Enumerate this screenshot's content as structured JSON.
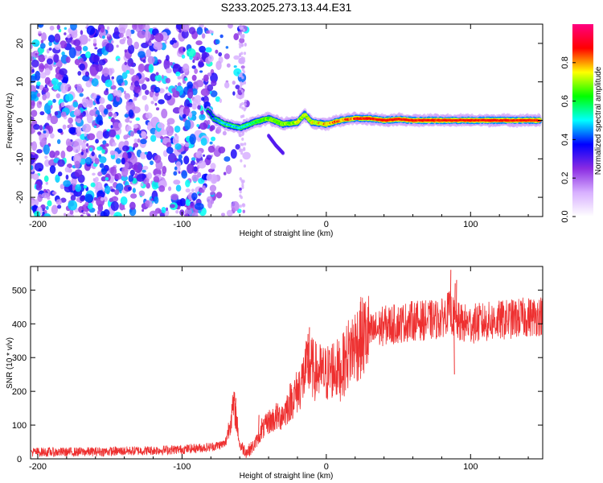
{
  "figure": {
    "title": "S233.2025.273.13.44.E31"
  },
  "chart_data": [
    {
      "type": "heatmap",
      "name": "spectrogram",
      "xlabel": "Height of straight line (km)",
      "ylabel": "Frequency (Hz)",
      "xlim": [
        -205,
        150
      ],
      "ylim": [
        -25,
        25
      ],
      "xticks": [
        -200,
        -100,
        0,
        100
      ],
      "yticks": [
        -20,
        -10,
        0,
        10,
        20
      ],
      "colorbar": {
        "label": "Normalized spectral amplitude",
        "range": [
          0,
          1
        ],
        "ticks": [
          0.0,
          0.2,
          0.4,
          0.6,
          0.8
        ],
        "colors": [
          "#ffffff",
          "#d8b0ff",
          "#8a2be2",
          "#0000ff",
          "#00ffff",
          "#00ff00",
          "#ffff00",
          "#ff0000",
          "#ff0080"
        ]
      },
      "ridge": {
        "x": [
          -82,
          -78,
          -70,
          -60,
          -50,
          -40,
          -30,
          -20,
          -15,
          -10,
          0,
          10,
          20,
          30,
          40,
          50,
          60,
          80,
          100,
          120,
          148
        ],
        "y": [
          2.5,
          0.5,
          -1,
          -2,
          -0.5,
          0.5,
          -1,
          -0.5,
          1.5,
          -0.5,
          -1,
          0,
          0.5,
          0.5,
          0,
          0.3,
          0,
          0,
          0,
          0,
          0
        ],
        "amplitude": [
          0.35,
          0.45,
          0.5,
          0.5,
          0.6,
          0.7,
          0.7,
          0.75,
          0.75,
          0.8,
          0.82,
          0.85,
          0.88,
          0.9,
          0.92,
          0.95,
          0.95,
          0.95,
          0.95,
          0.95,
          0.95
        ]
      },
      "branch": {
        "x": [
          -40,
          -35,
          -30
        ],
        "y": [
          -4,
          -6.5,
          -8.5
        ]
      },
      "noise": {
        "x_range": [
          -205,
          -55
        ],
        "y_range": [
          -25,
          25
        ],
        "amplitude_range": [
          0.0,
          0.35
        ]
      }
    },
    {
      "type": "line",
      "name": "snr",
      "xlabel": "Height of straight line (km)",
      "ylabel": "SNR (10 * v/v)",
      "xlim": [
        -205,
        150
      ],
      "ylim": [
        0,
        570
      ],
      "xticks": [
        -200,
        -100,
        0,
        100
      ],
      "yticks": [
        0,
        100,
        200,
        300,
        400,
        500
      ],
      "color": "#ee3030",
      "series": [
        {
          "name": "SNR",
          "x": [
            -205,
            -180,
            -150,
            -120,
            -100,
            -80,
            -70,
            -64,
            -62,
            -60,
            -55,
            -50,
            -45,
            -40,
            -35,
            -30,
            -25,
            -20,
            -15,
            -12,
            -8,
            0,
            5,
            10,
            15,
            20,
            25,
            30,
            40,
            50,
            60,
            70,
            80,
            85,
            88,
            90,
            95,
            100,
            110,
            120,
            130,
            140,
            150
          ],
          "values": [
            20,
            20,
            22,
            25,
            28,
            35,
            45,
            160,
            110,
            40,
            20,
            40,
            80,
            110,
            120,
            130,
            170,
            200,
            250,
            280,
            260,
            250,
            270,
            260,
            310,
            340,
            360,
            370,
            395,
            400,
            410,
            410,
            415,
            440,
            420,
            405,
            400,
            400,
            405,
            410,
            415,
            420,
            425
          ]
        }
      ],
      "spikes": {
        "x": [
          -63,
          -47,
          -45,
          -35,
          -31,
          -15,
          -13,
          -12,
          86,
          88,
          89,
          90,
          88.5
        ],
        "values": [
          180,
          130,
          120,
          165,
          155,
          280,
          370,
          390,
          560,
          450,
          520,
          530,
          250
        ]
      }
    }
  ]
}
